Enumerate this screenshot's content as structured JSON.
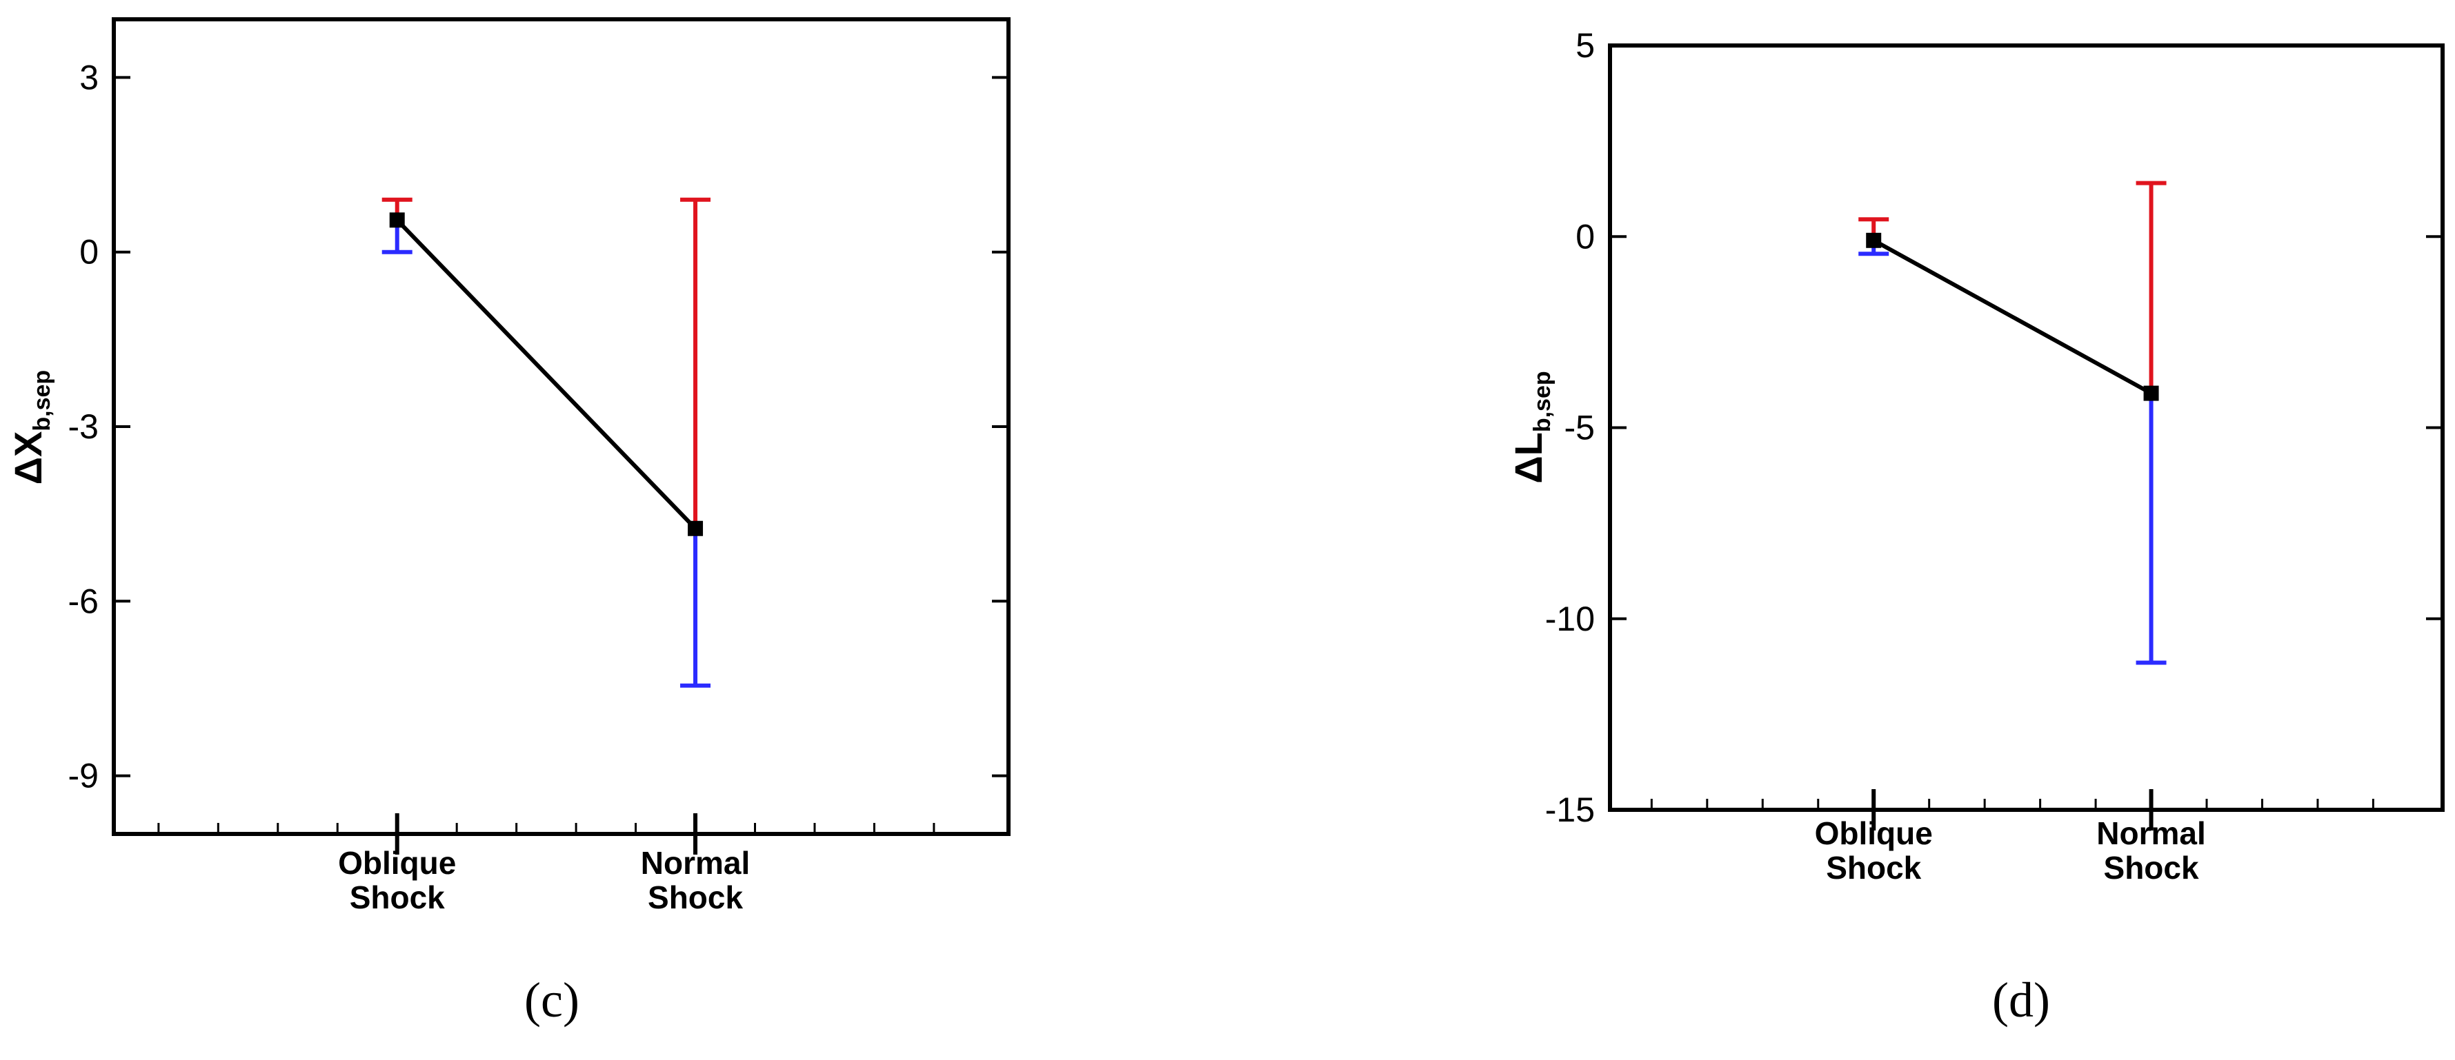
{
  "chart_data": [
    {
      "type": "line",
      "panel_label": "(c)",
      "ylabel": {
        "delta": "Δ",
        "main": "X",
        "sub": "b,sep"
      },
      "ylim": [
        -10,
        4
      ],
      "yticks": [
        3,
        0,
        -3,
        -6,
        -9
      ],
      "ytick_labels": [
        "3",
        "0",
        "-3",
        "-6",
        "-9"
      ],
      "xlim": [
        -0.95,
        2.05
      ],
      "categories": [
        {
          "x": 0,
          "line1": "Oblique",
          "line2": "Shock"
        },
        {
          "x": 1,
          "line1": "Normal",
          "line2": "Shock"
        }
      ],
      "minor_xticks": [
        -0.8,
        -0.6,
        -0.4,
        -0.2,
        0.2,
        0.4,
        0.6,
        0.8,
        1.2,
        1.4,
        1.6,
        1.8
      ],
      "series": [
        {
          "values": [
            0.55,
            -4.75
          ],
          "color": "#000000"
        }
      ],
      "error_bars": [
        {
          "x": 0,
          "upper": 0.9,
          "lower": 0.0
        },
        {
          "x": 1,
          "upper": 0.9,
          "lower": -7.45
        }
      ],
      "colors": {
        "upper": "#e0141e",
        "lower": "#2b2bff",
        "line": "#000000"
      },
      "grid": false
    },
    {
      "type": "line",
      "panel_label": "(d)",
      "ylabel": {
        "delta": "Δ",
        "main": "L",
        "sub": "b,sep"
      },
      "ylim": [
        -15,
        5
      ],
      "yticks": [
        5,
        0,
        -5,
        -10,
        -15
      ],
      "ytick_labels": [
        "5",
        "0",
        "-5",
        "-10",
        "-15"
      ],
      "xlim": [
        -0.95,
        2.05
      ],
      "categories": [
        {
          "x": 0,
          "line1": "Oblique",
          "line2": "Shock"
        },
        {
          "x": 1,
          "line1": "Normal",
          "line2": "Shock"
        }
      ],
      "minor_xticks": [
        -0.8,
        -0.6,
        -0.4,
        -0.2,
        0.2,
        0.4,
        0.6,
        0.8,
        1.2,
        1.4,
        1.6,
        1.8
      ],
      "series": [
        {
          "values": [
            -0.1,
            -4.1
          ],
          "color": "#000000"
        }
      ],
      "error_bars": [
        {
          "x": 0,
          "upper": 0.45,
          "lower": -0.45
        },
        {
          "x": 1,
          "upper": 1.4,
          "lower": -11.15
        }
      ],
      "colors": {
        "upper": "#e0141e",
        "lower": "#2b2bff",
        "line": "#000000"
      },
      "grid": false
    }
  ]
}
